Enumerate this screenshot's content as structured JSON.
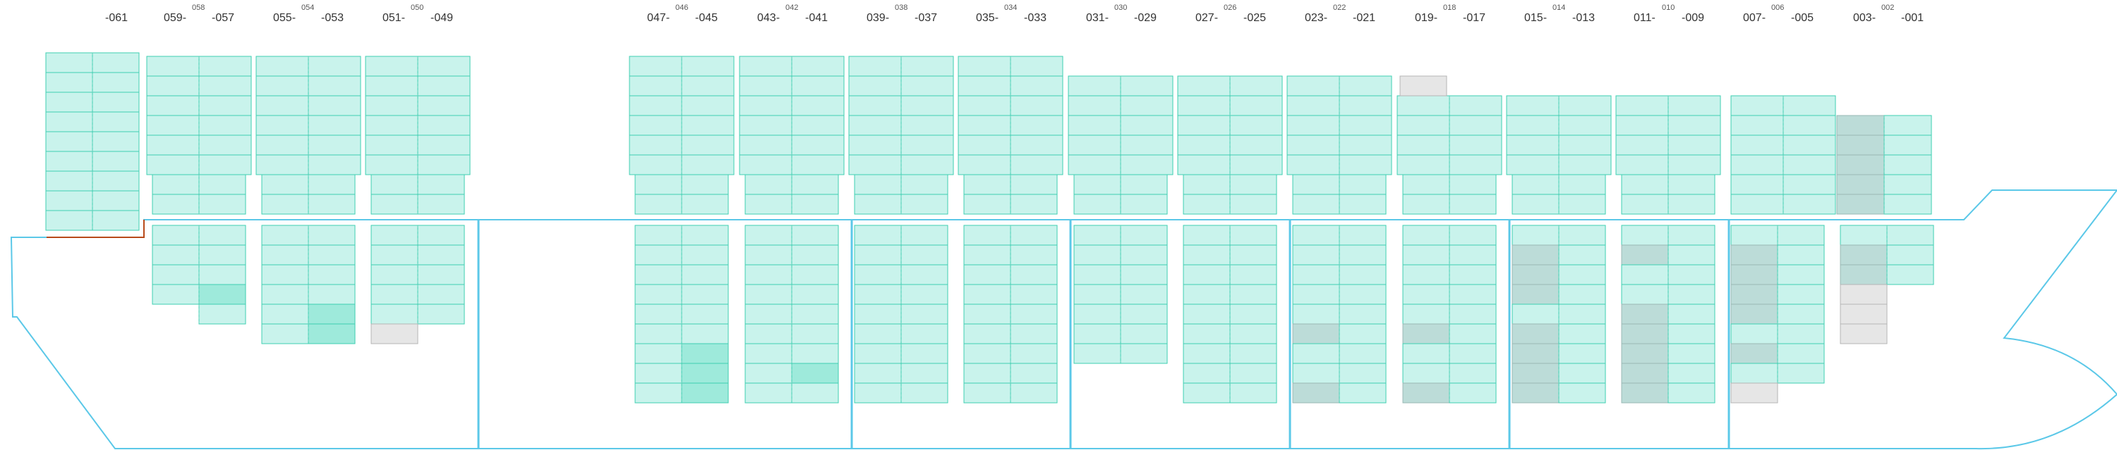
{
  "colors": {
    "hull": "#5bc8e8",
    "bulkhead": "#5bc8e8",
    "cell_fill": "#c9f3ec",
    "cell_stroke": "#3fcfb2",
    "cell_divider": "#5ad1b8",
    "highlight_fill": "#9eeadb",
    "grey_fill": "#bcdcd8",
    "grey_stroke": "#9ab8b4",
    "empty_fill": "#e6e6e6",
    "empty_stroke": "#b5b5b5",
    "accent_line": "#b84a1a"
  },
  "bays": [
    {
      "id": "bay-061",
      "label": "-061",
      "odd_a": "",
      "even": "",
      "odd_b": ""
    },
    {
      "id": "bay-059-057",
      "label": "",
      "odd_a": "059-",
      "even": "058",
      "odd_b": "-057"
    },
    {
      "id": "bay-055-053",
      "label": "",
      "odd_a": "055-",
      "even": "054",
      "odd_b": "-053"
    },
    {
      "id": "bay-051-049",
      "label": "",
      "odd_a": "051-",
      "even": "050",
      "odd_b": "-049"
    },
    {
      "id": "bay-047-045",
      "label": "",
      "odd_a": "047-",
      "even": "046",
      "odd_b": "-045"
    },
    {
      "id": "bay-043-041",
      "label": "",
      "odd_a": "043-",
      "even": "042",
      "odd_b": "-041"
    },
    {
      "id": "bay-039-037",
      "label": "",
      "odd_a": "039-",
      "even": "038",
      "odd_b": "-037"
    },
    {
      "id": "bay-035-033",
      "label": "",
      "odd_a": "035-",
      "even": "034",
      "odd_b": "-033"
    },
    {
      "id": "bay-031-029",
      "label": "",
      "odd_a": "031-",
      "even": "030",
      "odd_b": "-029"
    },
    {
      "id": "bay-027-025",
      "label": "",
      "odd_a": "027-",
      "even": "026",
      "odd_b": "-025"
    },
    {
      "id": "bay-023-021",
      "label": "",
      "odd_a": "023-",
      "even": "022",
      "odd_b": "-021"
    },
    {
      "id": "bay-019-017",
      "label": "",
      "odd_a": "019-",
      "even": "018",
      "odd_b": "-017"
    },
    {
      "id": "bay-015-013",
      "label": "",
      "odd_a": "015-",
      "even": "014",
      "odd_b": "-013"
    },
    {
      "id": "bay-011-009",
      "label": "",
      "odd_a": "011-",
      "even": "010",
      "odd_b": "-009"
    },
    {
      "id": "bay-007-005",
      "label": "",
      "odd_a": "007-",
      "even": "006",
      "odd_b": "-005"
    },
    {
      "id": "bay-003-001",
      "label": "",
      "odd_a": "003-",
      "even": "002",
      "odd_b": "-001"
    }
  ]
}
